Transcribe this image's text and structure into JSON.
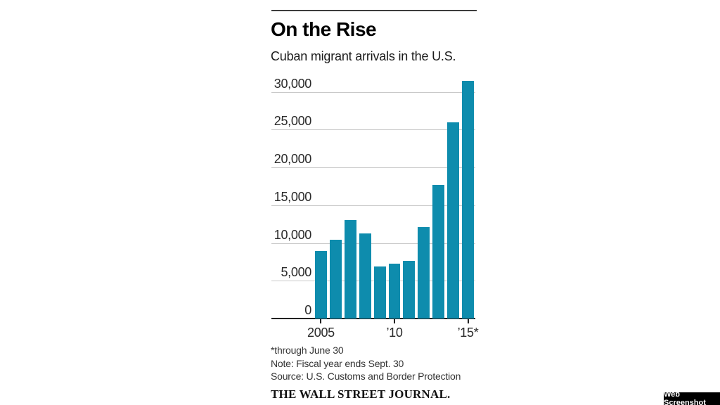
{
  "page": {
    "background": "#ffffff"
  },
  "chart": {
    "title": "On the Rise",
    "subtitle": "Cuban migrant arrivals in the U.S.",
    "footnotes": [
      "*through June 30",
      "Note: Fiscal year ends Sept. 30",
      "Source: U.S. Customs and Border Protection"
    ],
    "credit": "THE WALL STREET JOURNAL."
  },
  "chart_data": {
    "type": "bar",
    "title": "On the Rise",
    "subtitle": "Cuban migrant arrivals in the U.S.",
    "categories": [
      "2005",
      "2006",
      "2007",
      "2008",
      "2009",
      "2010",
      "2011",
      "2012",
      "2013",
      "2014",
      "2015"
    ],
    "values": [
      8900,
      10400,
      13000,
      11300,
      6900,
      7300,
      7600,
      12100,
      17700,
      26000,
      31400
    ],
    "unit": "migrant arrivals",
    "ylim": [
      0,
      32000
    ],
    "grid": "horizontal",
    "legend": "none",
    "bar_color": "#0e8cad",
    "gridline_color": "#c9c9c9",
    "axis_color": "#222222",
    "y_ticks": [
      {
        "value": 0,
        "label": "0"
      },
      {
        "value": 5000,
        "label": "5,000"
      },
      {
        "value": 10000,
        "label": "10,000"
      },
      {
        "value": 15000,
        "label": "15,000"
      },
      {
        "value": 20000,
        "label": "20,000"
      },
      {
        "value": 25000,
        "label": "25,000"
      },
      {
        "value": 30000,
        "label": "30,000"
      }
    ],
    "x_ticks": [
      {
        "bar_index": 0,
        "label": "2005"
      },
      {
        "bar_index": 5,
        "label": "’10"
      },
      {
        "bar_index": 10,
        "label": "’15*"
      }
    ]
  },
  "badge": {
    "label": "Web Screenshot",
    "background": "#000000",
    "text_color": "#ffffff"
  }
}
